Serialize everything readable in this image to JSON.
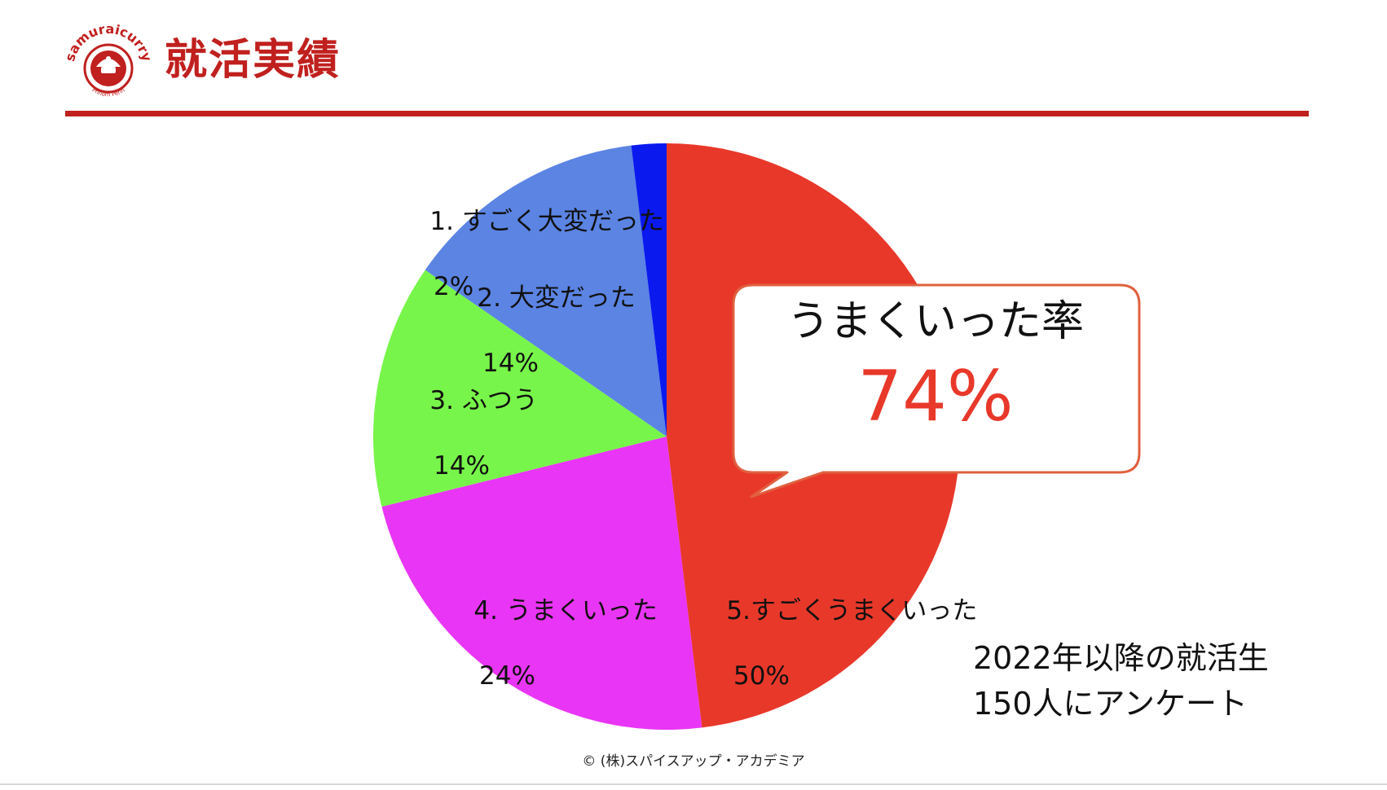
{
  "header": {
    "title": "就活実績",
    "logo": {
      "brand_text": "samuraicurry",
      "sub_text": "Phnom Penh",
      "colors": {
        "primary": "#c0201e",
        "background": "#ffffff"
      }
    }
  },
  "chart_data": {
    "type": "pie",
    "start_angle": "12 o'clock",
    "direction": "counter-clockwise",
    "slices": [
      {
        "label": "5.すごくうまくいった",
        "value": 50,
        "display": "50%",
        "color": "#e8382a"
      },
      {
        "label": "4. うまくいった",
        "value": 24,
        "display": "24%",
        "color": "#e935f5"
      },
      {
        "label": "3. ふつう",
        "value": 14,
        "display": "14%",
        "color": "#78f54a"
      },
      {
        "label": "2. 大変だった",
        "value": 14,
        "display": "14%",
        "color": "#5b84e3"
      },
      {
        "label": "1. すごく大変だった",
        "value": 2,
        "display": "2%",
        "color": "#0a19ee"
      }
    ]
  },
  "callout": {
    "label": "うまくいった率",
    "value": "74%",
    "colors": {
      "border": "#e06040",
      "value": "#e8382a"
    }
  },
  "note": {
    "line1": "2022年以降の就活生",
    "line2": "150人にアンケート"
  },
  "footer": {
    "copyright": "© (株)スパイスアップ・アカデミア"
  }
}
